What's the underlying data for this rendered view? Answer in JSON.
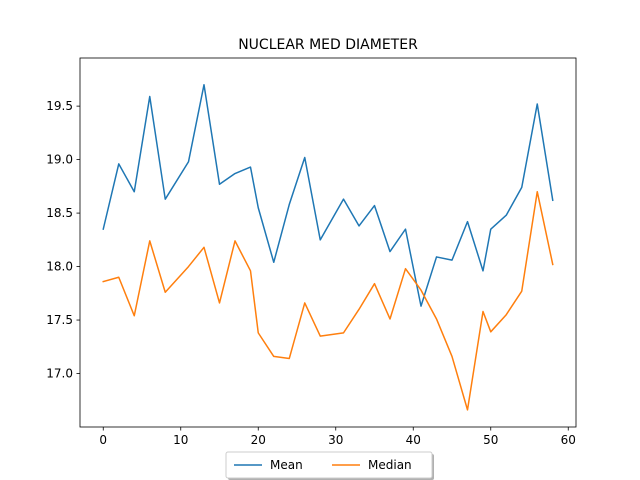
{
  "chart_data": {
    "type": "line",
    "title": "NUCLEAR MED DIAMETER",
    "xlabel": "",
    "ylabel": "",
    "xlim": [
      -3,
      61
    ],
    "ylim": [
      16.5,
      19.95
    ],
    "xticks": [
      0,
      10,
      20,
      30,
      40,
      50,
      60
    ],
    "yticks": [
      17.0,
      17.5,
      18.0,
      18.5,
      19.0,
      19.5
    ],
    "ytick_labels": [
      "17.0",
      "17.5",
      "18.0",
      "18.5",
      "19.0",
      "19.5"
    ],
    "x": [
      0,
      2,
      4,
      6,
      8,
      11,
      13,
      15,
      17,
      19,
      20,
      22,
      24,
      26,
      28,
      31,
      33,
      35,
      37,
      39,
      41,
      43,
      45,
      47,
      49,
      50,
      52,
      54,
      56,
      58
    ],
    "series": [
      {
        "name": "Mean",
        "color": "#1f77b4",
        "values": [
          18.35,
          18.96,
          18.7,
          19.59,
          18.63,
          18.98,
          19.7,
          18.77,
          18.87,
          18.93,
          18.55,
          18.04,
          18.58,
          19.02,
          18.25,
          18.63,
          18.38,
          18.57,
          18.14,
          18.35,
          17.63,
          18.09,
          18.06,
          18.42,
          17.96,
          18.35,
          18.48,
          18.74,
          19.52,
          18.62
        ]
      },
      {
        "name": "Median",
        "color": "#ff7f0e",
        "values": [
          17.86,
          17.9,
          17.54,
          18.24,
          17.76,
          18.0,
          18.18,
          17.66,
          18.24,
          17.96,
          17.38,
          17.16,
          17.14,
          17.66,
          17.35,
          17.38,
          17.6,
          17.84,
          17.51,
          17.98,
          17.78,
          17.51,
          17.16,
          16.66,
          17.58,
          17.39,
          17.55,
          17.77,
          18.7,
          18.02
        ]
      }
    ],
    "legend": {
      "placement": "bottom-center",
      "ncol": 2
    },
    "grid": false
  }
}
